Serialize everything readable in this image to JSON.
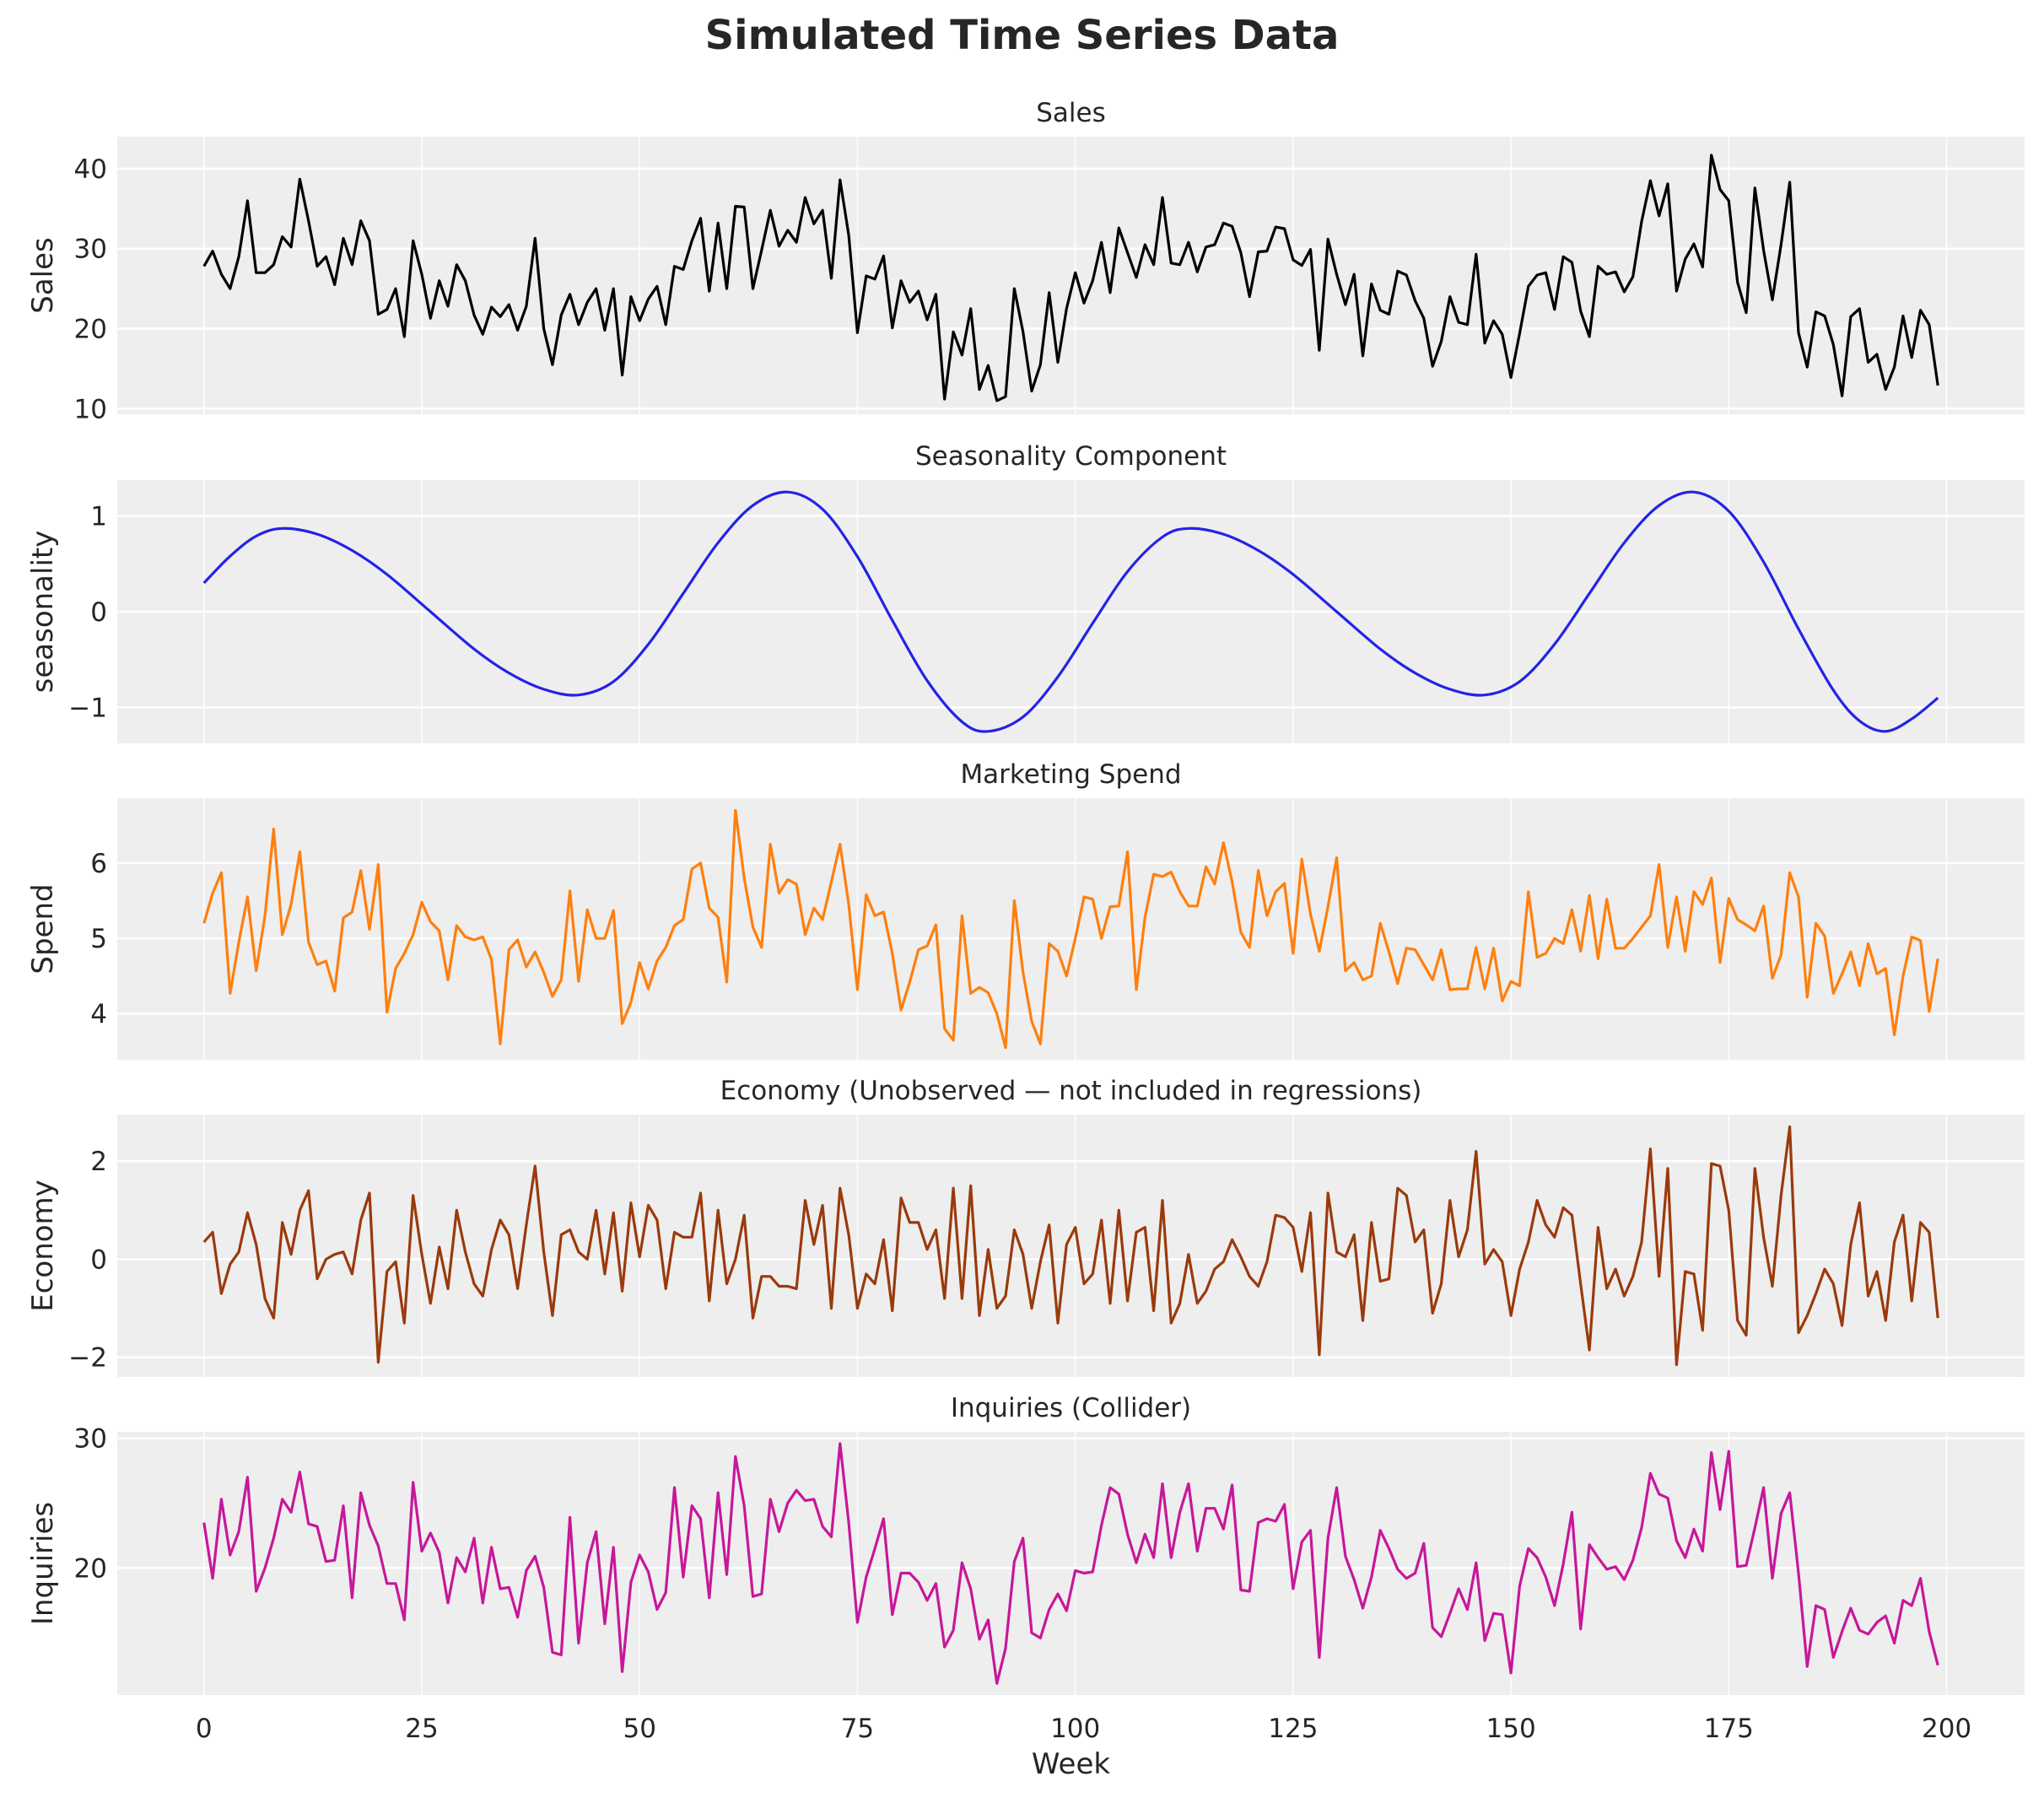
{
  "chart_data": {
    "type": "line",
    "title": "Simulated Time Series Data",
    "xlabel": "Week",
    "xlim": [
      -9.95,
      208.95
    ],
    "xticks": [
      0,
      25,
      50,
      75,
      100,
      125,
      150,
      175,
      200
    ],
    "grid": true,
    "panels": [
      {
        "title": "Sales",
        "ylabel": "Sales",
        "color": "#000000",
        "ylim": [
          9.3,
          44.0
        ],
        "yticks": [
          10,
          20,
          30,
          40
        ],
        "x_start": 0,
        "x_step": 1,
        "values": [
          27.8,
          29.7,
          26.8,
          25,
          29,
          36,
          27,
          27,
          28,
          31.5,
          30.2,
          38.7,
          33.5,
          27.8,
          29,
          25.5,
          31.3,
          28,
          33.5,
          31,
          21.8,
          22.4,
          25,
          19,
          31,
          26.8,
          21.3,
          26,
          22.8,
          28,
          26,
          21.7,
          19.3,
          22.7,
          21.5,
          23,
          19.8,
          22.8,
          31.3,
          20,
          15.5,
          21.7,
          24.3,
          20.5,
          23.3,
          25,
          19.8,
          25,
          14.2,
          24,
          21,
          23.7,
          25.3,
          20.5,
          27.8,
          27.4,
          31,
          33.8,
          24.7,
          33.2,
          25,
          35.3,
          35.2,
          25,
          29.8,
          34.8,
          30.3,
          32.3,
          30.8,
          36.4,
          33.1,
          34.8,
          26.3,
          38.6,
          31.7,
          19.5,
          26.6,
          26.2,
          29.1,
          20.1,
          26,
          23.3,
          24.7,
          21.1,
          24.3,
          11.2,
          19.6,
          16.7,
          22.5,
          12.4,
          15.4,
          11,
          11.5,
          25,
          19.6,
          12.2,
          15.5,
          24.5,
          15.8,
          22.5,
          27,
          23.2,
          26,
          30.8,
          24.5,
          32.6,
          29.5,
          26.4,
          30.5,
          28,
          36.4,
          28.2,
          28,
          30.8,
          27.1,
          30.2,
          30.5,
          33.2,
          32.8,
          29.5,
          24,
          29.6,
          29.7,
          32.7,
          32.5,
          28.6,
          27.9,
          29.9,
          17.3,
          31.2,
          26.8,
          23,
          26.8,
          16.6,
          25.6,
          22.3,
          21.8,
          27.2,
          26.7,
          23.5,
          21.3,
          15.3,
          18.4,
          24,
          20.8,
          20.5,
          29.3,
          18.2,
          21,
          19.3,
          13.9,
          19.4,
          25.3,
          26.7,
          27,
          22.4,
          29,
          28.3,
          22.2,
          19,
          27.8,
          26.8,
          27.1,
          24.6,
          26.5,
          33.4,
          38.5,
          34.1,
          38.1,
          24.7,
          28.7,
          30.6,
          27.7,
          41.7,
          37.4,
          36,
          25.8,
          22,
          37.6,
          29.8,
          23.6,
          30.5,
          38.3,
          19.5,
          15.2,
          22.1,
          21.6,
          18,
          11.6,
          21.5,
          22.5,
          15.8,
          16.8,
          12.4,
          15.2,
          21.6,
          16.4,
          22.3,
          20.5,
          12.9
        ]
      },
      {
        "title": "Seasonality Component",
        "ylabel": "seasonality",
        "color": "#2323e6",
        "ylim": [
          -1.375,
          1.375
        ],
        "yticks": [
          -1,
          0,
          1
        ],
        "x": [
          0,
          3,
          6,
          9,
          13,
          17,
          21,
          26,
          31,
          35,
          39,
          43,
          47,
          51,
          55,
          59,
          63,
          67,
          71,
          75,
          79,
          83,
          87,
          90,
          94,
          98,
          102,
          106,
          110,
          113,
          117,
          121,
          125,
          130,
          135,
          139,
          143,
          147,
          151,
          155,
          159,
          163,
          167,
          171,
          175,
          179,
          183,
          187,
          190,
          193,
          196,
          199
        ],
        "values": [
          0.3,
          0.58,
          0.79,
          0.87,
          0.81,
          0.64,
          0.39,
          0,
          -0.39,
          -0.64,
          -0.81,
          -0.87,
          -0.73,
          -0.34,
          0.19,
          0.72,
          1.11,
          1.25,
          1.07,
          0.575,
          -0.09,
          -0.72,
          -1.15,
          -1.25,
          -1.1,
          -0.68,
          -0.12,
          0.42,
          0.78,
          0.87,
          0.81,
          0.64,
          0.39,
          0,
          -0.39,
          -0.64,
          -0.81,
          -0.87,
          -0.73,
          -0.34,
          0.19,
          0.72,
          1.11,
          1.25,
          1.05,
          0.52,
          -0.18,
          -0.82,
          -1.14,
          -1.25,
          -1.12,
          -0.9
        ],
        "smooth": true
      },
      {
        "title": "Marketing Spend",
        "ylabel": "Spend",
        "color": "#ff7f0e",
        "ylim": [
          3.39,
          6.86
        ],
        "yticks": [
          4,
          5,
          6
        ],
        "x_start": 0,
        "x_step": 1,
        "values": [
          5.2,
          5.6,
          5.87,
          4.27,
          4.95,
          5.55,
          4.57,
          5.3,
          6.45,
          5.05,
          5.45,
          6.15,
          4.95,
          4.65,
          4.7,
          4.3,
          5.27,
          5.35,
          5.9,
          5.12,
          5.98,
          4.02,
          4.6,
          4.8,
          5.05,
          5.48,
          5.22,
          5.1,
          4.45,
          5.17,
          5.02,
          4.98,
          5.02,
          4.72,
          3.6,
          4.85,
          4.98,
          4.62,
          4.82,
          4.55,
          4.23,
          4.45,
          5.63,
          4.43,
          5.38,
          5,
          5,
          5.37,
          3.87,
          4.15,
          4.68,
          4.33,
          4.7,
          4.88,
          5.17,
          5.25,
          5.92,
          6,
          5.4,
          5.28,
          4.42,
          6.7,
          5.8,
          5.15,
          4.88,
          6.25,
          5.6,
          5.78,
          5.72,
          5.05,
          5.4,
          5.25,
          5.75,
          6.25,
          5.45,
          4.32,
          5.58,
          5.3,
          5.35,
          4.8,
          4.05,
          4.42,
          4.85,
          4.9,
          5.18,
          3.8,
          3.65,
          5.3,
          4.27,
          4.35,
          4.28,
          4.0,
          3.55,
          5.5,
          4.55,
          3.9,
          3.6,
          4.93,
          4.83,
          4.5,
          5.0,
          5.55,
          5.52,
          5.0,
          5.42,
          5.43,
          6.15,
          4.32,
          5.28,
          5.85,
          5.82,
          5.88,
          5.62,
          5.43,
          5.43,
          5.95,
          5.72,
          6.27,
          5.75,
          5.08,
          4.88,
          5.9,
          5.3,
          5.62,
          5.73,
          4.8,
          6.05,
          5.32,
          4.83,
          5.42,
          6.07,
          4.57,
          4.68,
          4.45,
          4.5,
          5.2,
          4.82,
          4.4,
          4.87,
          4.85,
          4.65,
          4.45,
          4.85,
          4.32,
          4.33,
          4.33,
          4.88,
          4.33,
          4.87,
          4.17,
          4.43,
          4.37,
          5.62,
          4.75,
          4.8,
          5.0,
          4.93,
          5.38,
          4.83,
          5.57,
          4.73,
          5.52,
          4.87,
          4.87,
          5.0,
          5.15,
          5.3,
          5.98,
          4.88,
          5.55,
          4.83,
          5.62,
          5.45,
          5.8,
          4.68,
          5.53,
          5.25,
          5.18,
          5.1,
          5.43,
          4.47,
          4.78,
          5.87,
          5.55,
          4.22,
          5.2,
          5.03,
          4.27,
          4.53,
          4.82,
          4.37,
          4.93,
          4.53,
          4.6,
          3.72,
          4.5,
          5.02,
          4.97,
          4.03,
          4.73
        ]
      },
      {
        "title": "Economy (Unobserved — not included in regressions)",
        "ylabel": "Economy",
        "color": "#9a3a0c",
        "ylim": [
          -2.4,
          2.95
        ],
        "yticks": [
          -2,
          0,
          2
        ],
        "x_start": 0,
        "x_step": 1,
        "values": [
          0.35,
          0.55,
          -0.7,
          -0.1,
          0.15,
          0.95,
          0.3,
          -0.8,
          -1.2,
          0.75,
          0.1,
          1.0,
          1.4,
          -0.4,
          0,
          0.1,
          0.15,
          -0.3,
          0.8,
          1.35,
          -2.1,
          -0.25,
          -0.05,
          -1.3,
          1.3,
          0.1,
          -0.9,
          0.25,
          -0.6,
          1.0,
          0.15,
          -0.5,
          -0.75,
          0.2,
          0.8,
          0.5,
          -0.6,
          0.7,
          1.9,
          0.15,
          -1.15,
          0.5,
          0.6,
          0.15,
          0,
          1.0,
          -0.3,
          0.95,
          -0.65,
          1.15,
          0.05,
          1.1,
          0.8,
          -0.6,
          0.55,
          0.45,
          0.45,
          1.35,
          -0.85,
          1.0,
          -0.5,
          0,
          0.9,
          -1.2,
          -0.35,
          -0.35,
          -0.55,
          -0.55,
          -0.6,
          1.2,
          0.3,
          1.1,
          -1.0,
          1.45,
          0.5,
          -1.0,
          -0.3,
          -0.5,
          0.4,
          -1.05,
          1.25,
          0.75,
          0.75,
          0.2,
          0.6,
          -0.8,
          1.45,
          -0.8,
          1.5,
          -1.15,
          0.2,
          -1.0,
          -0.75,
          0.6,
          0.1,
          -1.0,
          -0.05,
          0.7,
          -1.3,
          0.3,
          0.65,
          -0.5,
          -0.3,
          0.8,
          -0.9,
          1.0,
          -0.85,
          0.55,
          0.65,
          -1.05,
          1.2,
          -1.3,
          -0.9,
          0.1,
          -0.9,
          -0.65,
          -0.2,
          -0.05,
          0.4,
          0.05,
          -0.35,
          -0.55,
          -0.05,
          0.9,
          0.85,
          0.65,
          -0.25,
          0.95,
          -1.95,
          1.35,
          0.15,
          0.05,
          0.5,
          -1.25,
          0.75,
          -0.45,
          -0.4,
          1.45,
          1.3,
          0.35,
          0.6,
          -1.1,
          -0.5,
          1.2,
          0.05,
          0.6,
          2.2,
          -0.1,
          0.2,
          -0.05,
          -1.15,
          -0.2,
          0.35,
          1.2,
          0.7,
          0.45,
          1.05,
          0.9,
          -0.5,
          -1.85,
          0.65,
          -0.6,
          -0.2,
          -0.75,
          -0.35,
          0.35,
          2.25,
          -0.35,
          1.85,
          -2.15,
          -0.25,
          -0.3,
          -1.45,
          1.95,
          1.9,
          1.0,
          -1.25,
          -1.55,
          1.85,
          0.45,
          -0.55,
          1.3,
          2.7,
          -1.5,
          -1.15,
          -0.7,
          -0.2,
          -0.5,
          -1.35,
          0.3,
          1.15,
          -0.75,
          -0.25,
          -1.25,
          0.35,
          0.9,
          -0.85,
          0.75,
          0.55,
          -1.2
        ]
      },
      {
        "title": "Inquiries (Collider)",
        "ylabel": "Inquiries",
        "color": "#c7179a",
        "ylim": [
          10.2,
          30.5
        ],
        "yticks": [
          20,
          30
        ],
        "x_start": 0,
        "x_step": 1,
        "values": [
          23.5,
          19.2,
          25.3,
          21,
          22.8,
          27,
          18.2,
          20,
          22.3,
          25.3,
          24.3,
          27.4,
          23.4,
          23.2,
          20.5,
          20.6,
          24.8,
          17.7,
          25.8,
          23.3,
          21.7,
          18.8,
          18.8,
          16,
          26.6,
          21.3,
          22.7,
          21.2,
          17.3,
          20.8,
          19.7,
          22.3,
          17.3,
          21.6,
          18.4,
          18.5,
          16.2,
          19.8,
          20.9,
          18.5,
          13.5,
          13.3,
          23.9,
          14.2,
          20.4,
          22.8,
          15.7,
          21.6,
          12,
          18.9,
          21,
          19.7,
          16.8,
          18.1,
          26.2,
          19.3,
          24.8,
          23.8,
          17.7,
          25.8,
          19.5,
          28.6,
          24.8,
          17.8,
          18,
          25.3,
          22.8,
          25,
          26,
          25.2,
          25.3,
          23.2,
          22.4,
          29.6,
          23.5,
          15.8,
          19.3,
          21.5,
          23.8,
          16.4,
          19.6,
          19.6,
          18.9,
          17.5,
          18.8,
          13.9,
          15.2,
          20.4,
          18.4,
          14.5,
          16,
          11.1,
          13.8,
          20.5,
          22.3,
          15,
          14.6,
          16.8,
          18,
          16.7,
          19.8,
          19.6,
          19.7,
          23.3,
          26.2,
          25.7,
          22.6,
          20.4,
          22.6,
          20.8,
          26.5,
          20.8,
          24.3,
          26.5,
          21.3,
          24.6,
          24.6,
          23,
          26.4,
          18.3,
          18.2,
          23.5,
          23.8,
          23.6,
          24.9,
          18.4,
          22,
          22.9,
          13.1,
          22.3,
          26.2,
          20.9,
          19.1,
          16.9,
          19.3,
          22.9,
          21.5,
          19.9,
          19.2,
          19.6,
          21.9,
          15.4,
          14.7,
          16.5,
          18.4,
          16.8,
          20.4,
          14.4,
          16.5,
          16.4,
          11.9,
          18.6,
          21.5,
          20.8,
          19.3,
          17.1,
          20.3,
          24.3,
          15.3,
          21.8,
          20.8,
          19.9,
          20.1,
          19.1,
          20.6,
          23.1,
          27.3,
          25.7,
          25.4,
          22.1,
          20.8,
          23,
          21.3,
          28.9,
          24.5,
          29,
          20.1,
          20.2,
          23.1,
          26.2,
          19.2,
          24.2,
          25.8,
          19.6,
          12.4,
          17.1,
          16.8,
          13.1,
          15.1,
          16.9,
          15.2,
          14.9,
          15.8,
          16.3,
          14.2,
          17.5,
          17.1,
          19.2,
          15.1,
          12.5
        ]
      }
    ]
  }
}
